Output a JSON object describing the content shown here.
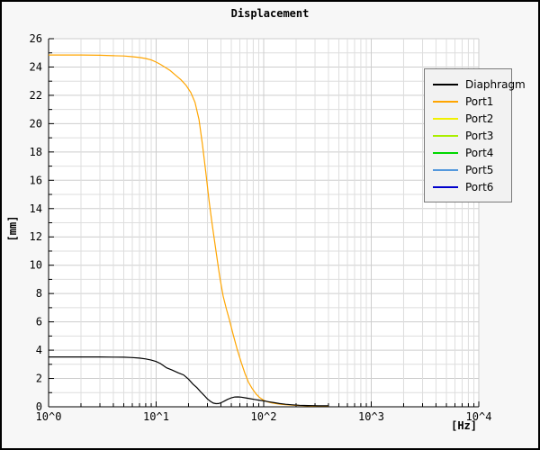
{
  "window": {
    "kind": "plot-viewer"
  },
  "chart_data": {
    "type": "line",
    "title": "Displacement",
    "xlabel": "[Hz]",
    "ylabel": "[mm]",
    "x_scale": "log",
    "x_range": [
      1,
      10000
    ],
    "x_tick_labels": [
      "10^0",
      "10^1",
      "10^2",
      "10^3",
      "10^4"
    ],
    "ylim": [
      0,
      26
    ],
    "y_tick_step": 2,
    "y_minor_step": 1,
    "grid": true,
    "legend_position": "top-right",
    "plot_bg": "#ffffff",
    "figure_bg": "#f7f7f7",
    "grid_minor_color": "#dedede",
    "grid_major_color": "#cdcdcd",
    "axis_color": "#000000",
    "series": [
      {
        "name": "Diaphragm",
        "color": "#000000",
        "points": [
          [
            1,
            3.52
          ],
          [
            2,
            3.52
          ],
          [
            3,
            3.52
          ],
          [
            4,
            3.51
          ],
          [
            5,
            3.5
          ],
          [
            6,
            3.48
          ],
          [
            7,
            3.44
          ],
          [
            8,
            3.38
          ],
          [
            9,
            3.3
          ],
          [
            10,
            3.2
          ],
          [
            11,
            3.05
          ],
          [
            12.5,
            2.75
          ],
          [
            14,
            2.6
          ],
          [
            16,
            2.4
          ],
          [
            18,
            2.25
          ],
          [
            20,
            1.95
          ],
          [
            22,
            1.6
          ],
          [
            24,
            1.35
          ],
          [
            26,
            1.05
          ],
          [
            28,
            0.8
          ],
          [
            30,
            0.55
          ],
          [
            32,
            0.38
          ],
          [
            34,
            0.26
          ],
          [
            36,
            0.22
          ],
          [
            38,
            0.23
          ],
          [
            40,
            0.28
          ],
          [
            43,
            0.4
          ],
          [
            46,
            0.52
          ],
          [
            50,
            0.63
          ],
          [
            54,
            0.69
          ],
          [
            58,
            0.7
          ],
          [
            62,
            0.68
          ],
          [
            68,
            0.63
          ],
          [
            75,
            0.57
          ],
          [
            82,
            0.52
          ],
          [
            90,
            0.47
          ],
          [
            100,
            0.42
          ],
          [
            110,
            0.36
          ],
          [
            125,
            0.29
          ],
          [
            140,
            0.23
          ],
          [
            160,
            0.18
          ],
          [
            185,
            0.14
          ],
          [
            215,
            0.11
          ],
          [
            260,
            0.09
          ],
          [
            320,
            0.07
          ],
          [
            400,
            0.07
          ]
        ]
      },
      {
        "name": "Port1",
        "color": "#FFA500",
        "points": [
          [
            1,
            24.85
          ],
          [
            2,
            24.85
          ],
          [
            3,
            24.83
          ],
          [
            4,
            24.8
          ],
          [
            5,
            24.78
          ],
          [
            6,
            24.73
          ],
          [
            7,
            24.67
          ],
          [
            8,
            24.6
          ],
          [
            9,
            24.5
          ],
          [
            10,
            24.35
          ],
          [
            11,
            24.18
          ],
          [
            12,
            24.0
          ],
          [
            13.5,
            23.75
          ],
          [
            15,
            23.45
          ],
          [
            17,
            23.1
          ],
          [
            19,
            22.7
          ],
          [
            21,
            22.2
          ],
          [
            23,
            21.5
          ],
          [
            25,
            20.3
          ],
          [
            27,
            18.5
          ],
          [
            29,
            16.5
          ],
          [
            31,
            14.6
          ],
          [
            33,
            13.0
          ],
          [
            36,
            11.0
          ],
          [
            39,
            9.2
          ],
          [
            42,
            7.8
          ],
          [
            45,
            6.9
          ],
          [
            48,
            6.15
          ],
          [
            52,
            5.1
          ],
          [
            57,
            4.0
          ],
          [
            62,
            3.1
          ],
          [
            67,
            2.35
          ],
          [
            72,
            1.75
          ],
          [
            78,
            1.3
          ],
          [
            85,
            0.9
          ],
          [
            92,
            0.64
          ],
          [
            100,
            0.46
          ],
          [
            110,
            0.34
          ],
          [
            120,
            0.27
          ],
          [
            140,
            0.19
          ],
          [
            160,
            0.15
          ],
          [
            190,
            0.11
          ],
          [
            230,
            0.08
          ],
          [
            280,
            0.06
          ],
          [
            340,
            0.05
          ],
          [
            400,
            0.05
          ]
        ]
      },
      {
        "name": "Port2",
        "color": "#F0F000",
        "points": []
      },
      {
        "name": "Port3",
        "color": "#AAEE00",
        "points": []
      },
      {
        "name": "Port4",
        "color": "#00D800",
        "points": []
      },
      {
        "name": "Port5",
        "color": "#5599DD",
        "points": []
      },
      {
        "name": "Port6",
        "color": "#0000CC",
        "points": []
      }
    ]
  }
}
